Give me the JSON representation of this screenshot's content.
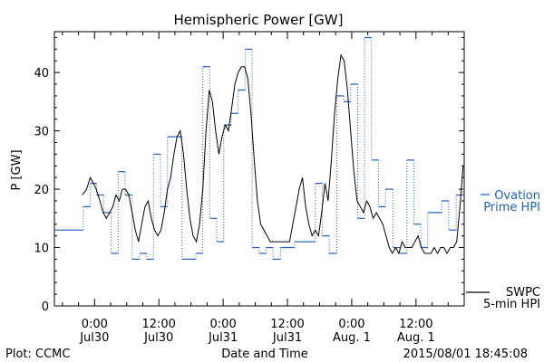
{
  "chart_data": {
    "type": "line",
    "title": "Hemispheric Power [GW]",
    "ylabel": "P [GW]",
    "xlabel": "Date and Time",
    "ylim": [
      0,
      47
    ],
    "xlim_hours": [
      -7.5,
      69.0
    ],
    "yticks": [
      0,
      10,
      20,
      30,
      40
    ],
    "xticks": [
      {
        "hour": 0,
        "time": "0:00",
        "date": "Jul30"
      },
      {
        "hour": 12,
        "time": "12:00",
        "date": "Jul30"
      },
      {
        "hour": 24,
        "time": "0:00",
        "date": "Jul31"
      },
      {
        "hour": 36,
        "time": "12:00",
        "date": "Jul31"
      },
      {
        "hour": 48,
        "time": "0:00",
        "date": "Aug. 1"
      },
      {
        "hour": 60,
        "time": "12:00",
        "date": "Aug. 1"
      }
    ],
    "series": [
      {
        "name_line1": "Ovation",
        "name_line2": "Prime HPI",
        "style": "step-dotted",
        "color": "#1f5fbf",
        "x": [
          -7.5,
          -2.1,
          -0.8,
          0.4,
          1.7,
          3.1,
          4.4,
          5.7,
          7.0,
          8.4,
          9.7,
          11.0,
          12.3,
          13.6,
          14.9,
          16.3,
          17.6,
          18.9,
          20.2,
          21.5,
          22.8,
          24.1,
          25.5,
          26.8,
          28.1,
          29.4,
          30.7,
          32.0,
          33.3,
          34.7,
          36.0,
          37.3,
          38.6,
          39.9,
          41.2,
          42.5,
          43.8,
          45.2,
          46.5,
          47.8,
          49.1,
          50.4,
          51.7,
          53.0,
          54.3,
          55.7,
          57.0,
          58.3,
          59.6,
          60.9,
          62.2,
          63.5,
          64.8,
          66.1,
          67.5,
          68.8
        ],
        "values": [
          13,
          17,
          21,
          19,
          16,
          9,
          23,
          19,
          8,
          9,
          8,
          26,
          17,
          29,
          29,
          8,
          8,
          9,
          41,
          15,
          11,
          31,
          33,
          37,
          44,
          10,
          9,
          10,
          8,
          10,
          10,
          11,
          11,
          11,
          21,
          12,
          9,
          36,
          35,
          38,
          15,
          46,
          25,
          17,
          20,
          10,
          9,
          25,
          14,
          10,
          16,
          16,
          18,
          13,
          19,
          20
        ]
      },
      {
        "name_line1": "SWPC",
        "name_line2": "5-min HPI",
        "style": "solid",
        "color": "#000000",
        "x": [
          -2.3,
          -1.5,
          -0.8,
          -0.2,
          0.3,
          1.0,
          1.6,
          2.2,
          2.8,
          3.4,
          4.0,
          4.6,
          5.2,
          5.8,
          6.4,
          7.0,
          7.6,
          8.2,
          8.8,
          9.4,
          10.0,
          10.6,
          11.2,
          11.8,
          12.4,
          13.0,
          13.6,
          14.2,
          14.8,
          15.4,
          16.0,
          16.6,
          17.2,
          17.8,
          18.4,
          19.0,
          19.6,
          20.2,
          20.8,
          21.4,
          22.0,
          22.6,
          23.2,
          23.8,
          24.4,
          25.0,
          25.6,
          26.2,
          26.8,
          27.4,
          28.0,
          28.6,
          29.2,
          29.8,
          30.4,
          31.0,
          31.6,
          32.2,
          32.8,
          33.4,
          34.0,
          34.6,
          35.2,
          35.8,
          36.4,
          37.0,
          37.6,
          38.2,
          38.8,
          39.4,
          40.0,
          40.6,
          41.2,
          41.8,
          42.4,
          43.0,
          43.6,
          44.2,
          44.8,
          45.4,
          46.0,
          46.6,
          47.2,
          47.8,
          48.4,
          49.0,
          49.6,
          50.2,
          50.8,
          51.4,
          52.0,
          52.6,
          53.2,
          53.8,
          54.4,
          55.0,
          55.6,
          56.2,
          56.8,
          57.4,
          58.0,
          58.6,
          59.2,
          59.8,
          60.4,
          61.0,
          61.6,
          62.2,
          62.8,
          63.4,
          64.0,
          64.6,
          65.2,
          65.8,
          66.4,
          67.0,
          67.6,
          68.2,
          68.8
        ],
        "values": [
          19,
          20,
          22,
          21,
          20,
          18,
          16,
          15,
          16,
          17,
          19,
          18,
          20,
          20,
          19,
          16,
          13,
          11,
          14,
          17,
          18,
          15,
          13,
          12,
          13,
          16,
          20,
          22,
          26,
          29,
          30,
          26,
          20,
          15,
          12,
          11,
          14,
          20,
          30,
          37,
          35,
          30,
          26,
          29,
          31,
          30,
          34,
          38,
          40,
          41,
          41,
          39,
          33,
          25,
          18,
          14,
          13,
          12,
          11,
          11,
          11,
          11,
          11,
          11,
          11,
          14,
          17,
          20,
          22,
          17,
          14,
          12,
          13,
          12,
          16,
          21,
          18,
          25,
          33,
          39,
          43,
          42,
          37,
          30,
          23,
          18,
          17,
          16,
          18,
          17,
          15,
          16,
          15,
          14,
          12,
          10,
          9,
          10,
          9,
          11,
          10,
          10,
          10,
          11,
          12,
          10,
          9,
          9,
          9,
          10,
          9,
          10,
          10,
          9,
          10,
          10,
          11,
          17,
          24
        ]
      }
    ],
    "annotations": {
      "bottom_left": "Plot: CCMC",
      "bottom_right": "2015/08/01 18:45:08"
    }
  }
}
